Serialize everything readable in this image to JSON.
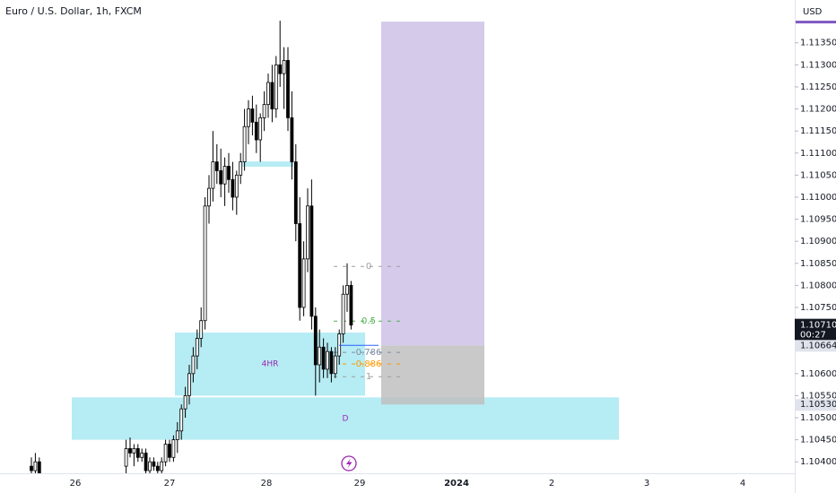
{
  "chart_data": {
    "type": "candlestick",
    "title": "Euro / U.S. Dollar, 1h, FXCM",
    "currency": "USD",
    "ylim": [
      1.10374,
      1.11447
    ],
    "yticks": [
      {
        "value": 1.1135,
        "label": "1.11350"
      },
      {
        "value": 1.113,
        "label": "1.11300"
      },
      {
        "value": 1.1125,
        "label": "1.11250"
      },
      {
        "value": 1.112,
        "label": "1.11200"
      },
      {
        "value": 1.1115,
        "label": "1.11150"
      },
      {
        "value": 1.111,
        "label": "1.11100"
      },
      {
        "value": 1.1105,
        "label": "1.11050"
      },
      {
        "value": 1.11,
        "label": "1.11000"
      },
      {
        "value": 1.1095,
        "label": "1.10950"
      },
      {
        "value": 1.109,
        "label": "1.10900"
      },
      {
        "value": 1.1085,
        "label": "1.10850"
      },
      {
        "value": 1.108,
        "label": "1.10800"
      },
      {
        "value": 1.1075,
        "label": "1.10750"
      },
      {
        "value": 1.106,
        "label": "1.10600"
      },
      {
        "value": 1.1055,
        "label": "1.10550"
      },
      {
        "value": 1.105,
        "label": "1.10500"
      },
      {
        "value": 1.1045,
        "label": "1.10450"
      },
      {
        "value": 1.104,
        "label": "1.10400"
      }
    ],
    "xtick_labels": [
      "26",
      "27",
      "28",
      "29",
      "2024",
      "2",
      "3",
      "4"
    ],
    "candles": [
      [
        1.1039,
        1.1041,
        1.1036,
        1.1038
      ],
      [
        1.1038,
        1.1042,
        1.1036,
        1.104
      ],
      [
        1.104,
        1.1041,
        1.1036,
        1.1037
      ],
      null,
      null,
      null,
      null,
      null,
      null,
      null,
      null,
      null,
      null,
      null,
      null,
      null,
      null,
      null,
      null,
      null,
      null,
      null,
      null,
      null,
      [
        1.1039,
        1.1045,
        1.1037,
        1.1043
      ],
      [
        1.1043,
        1.10455,
        1.1041,
        1.1042
      ],
      [
        1.1042,
        1.1044,
        1.1039,
        1.1043
      ],
      [
        1.1043,
        1.1044,
        1.104,
        1.1041
      ],
      [
        1.1041,
        1.1043,
        1.104,
        1.1042
      ],
      [
        1.1042,
        1.1043,
        1.1037,
        1.1038
      ],
      [
        1.1038,
        1.1041,
        1.1036,
        1.104
      ],
      [
        1.104,
        1.1041,
        1.1038,
        1.1039
      ],
      [
        1.1039,
        1.104,
        1.1037,
        1.1038
      ],
      [
        1.1038,
        1.1041,
        1.1037,
        1.104
      ],
      [
        1.104,
        1.1045,
        1.1039,
        1.1044
      ],
      [
        1.1044,
        1.1045,
        1.104,
        1.1041
      ],
      [
        1.1041,
        1.1046,
        1.104,
        1.1045
      ],
      [
        1.1045,
        1.1049,
        1.1042,
        1.1047
      ],
      [
        1.1047,
        1.1053,
        1.1045,
        1.1052
      ],
      [
        1.1052,
        1.1057,
        1.105,
        1.1055
      ],
      [
        1.1055,
        1.1062,
        1.1053,
        1.106
      ],
      [
        1.106,
        1.1066,
        1.1058,
        1.1064
      ],
      [
        1.1064,
        1.107,
        1.1061,
        1.1068
      ],
      [
        1.1068,
        1.1075,
        1.1066,
        1.1072
      ],
      [
        1.1072,
        1.11,
        1.107,
        1.1098
      ],
      [
        1.1098,
        1.1105,
        1.1094,
        1.1102
      ],
      [
        1.1102,
        1.1115,
        1.1099,
        1.1108
      ],
      [
        1.1108,
        1.1112,
        1.1103,
        1.1106
      ],
      [
        1.1106,
        1.1111,
        1.11,
        1.1103
      ],
      [
        1.1103,
        1.1109,
        1.1098,
        1.1107
      ],
      [
        1.1107,
        1.111,
        1.1101,
        1.1104
      ],
      [
        1.1104,
        1.1108,
        1.1097,
        1.11
      ],
      [
        1.11,
        1.1106,
        1.1096,
        1.1105
      ],
      [
        1.1105,
        1.111,
        1.1103,
        1.1108
      ],
      [
        1.1108,
        1.112,
        1.1106,
        1.1116
      ],
      [
        1.1116,
        1.1122,
        1.1112,
        1.112
      ],
      [
        1.112,
        1.1123,
        1.1114,
        1.1117
      ],
      [
        1.1117,
        1.1121,
        1.111,
        1.1113
      ],
      [
        1.1113,
        1.1119,
        1.1108,
        1.1118
      ],
      [
        1.1118,
        1.1124,
        1.1115,
        1.1121
      ],
      [
        1.1121,
        1.1128,
        1.1118,
        1.1126
      ],
      [
        1.1126,
        1.113,
        1.1117,
        1.112
      ],
      [
        1.112,
        1.1132,
        1.1118,
        1.113
      ],
      [
        1.113,
        1.114,
        1.1125,
        1.1128
      ],
      [
        1.1128,
        1.1134,
        1.112,
        1.1131
      ],
      [
        1.1131,
        1.1134,
        1.1115,
        1.1118
      ],
      [
        1.1118,
        1.1124,
        1.1104,
        1.1108
      ],
      [
        1.1108,
        1.1112,
        1.109,
        1.1094
      ],
      [
        1.1094,
        1.11,
        1.1072,
        1.1075
      ],
      [
        1.1075,
        1.109,
        1.1073,
        1.1086
      ],
      [
        1.1086,
        1.1102,
        1.1083,
        1.1098
      ],
      [
        1.1098,
        1.1104,
        1.107,
        1.1073
      ],
      [
        1.1073,
        1.1075,
        1.1055,
        1.1062
      ],
      [
        1.1062,
        1.107,
        1.1058,
        1.1066
      ],
      [
        1.1066,
        1.1068,
        1.1059,
        1.1061
      ],
      [
        1.1061,
        1.1067,
        1.1059,
        1.1065
      ],
      [
        1.1065,
        1.1066,
        1.1058,
        1.106
      ],
      [
        1.106,
        1.1066,
        1.1059,
        1.1064
      ],
      [
        1.1064,
        1.107,
        1.1062,
        1.1069
      ],
      [
        1.1069,
        1.108,
        1.1067,
        1.1078
      ],
      [
        1.1078,
        1.1085,
        1.1074,
        1.108
      ],
      [
        1.108,
        1.1081,
        1.107,
        1.1071
      ]
    ],
    "up_color": "#ffffff",
    "down_color": "#000000",
    "zones": [
      {
        "label": "4HR",
        "top": 1.10693,
        "bottom": 1.1055,
        "color": "#b2ebf2"
      },
      {
        "label": "D",
        "top": 1.10546,
        "bottom": 1.1045,
        "color": "#b2ebf2"
      },
      {
        "top": 1.11081,
        "bottom": 1.11069,
        "color": "#b2ebf2"
      }
    ],
    "position": {
      "target": 1.11398,
      "entry": 1.10664,
      "stop": {
        "value": 1.1053,
        "label": "1.10530"
      },
      "target_color": "#d1c4e9",
      "stop_color": "#c0c0c0"
    },
    "fib_levels": [
      {
        "label": "0",
        "value": 1.10843,
        "color": "#9e9e9e"
      },
      {
        "label": "0.5",
        "value": 1.10719,
        "color": "#4caf50"
      },
      {
        "label": "0.786",
        "value": 1.10648,
        "color": "#7f8ca3"
      },
      {
        "label": "0.886",
        "value": 1.10622,
        "color": "#ff9800"
      },
      {
        "label": "1",
        "value": 1.10593,
        "color": "#9e9e9e"
      }
    ],
    "last_price": {
      "value": 1.1071,
      "label": "1.10710",
      "countdown": "00:27"
    }
  }
}
